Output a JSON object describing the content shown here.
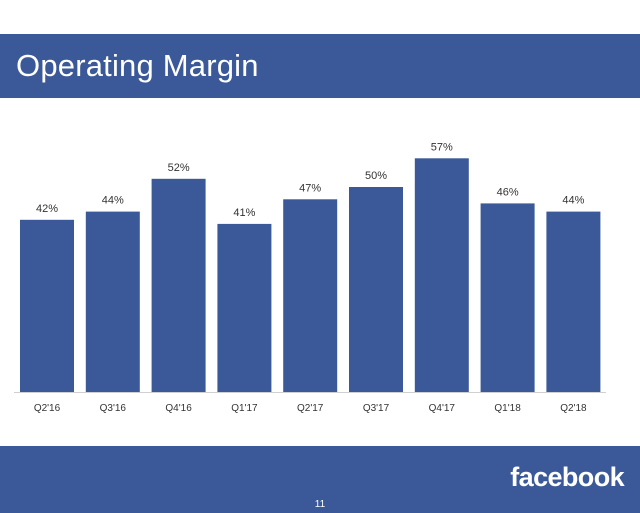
{
  "slide": {
    "title": "Operating Margin",
    "logo_text": "facebook",
    "page_number": "11"
  },
  "colors": {
    "brand_blue": "#3b5998",
    "bar": "#3b5998",
    "text": "#333333"
  },
  "chart_data": {
    "type": "bar",
    "title": "",
    "xlabel": "",
    "ylabel": "",
    "categories": [
      "Q2'16",
      "Q3'16",
      "Q4'16",
      "Q1'17",
      "Q2'17",
      "Q3'17",
      "Q4'17",
      "Q1'18",
      "Q2'18"
    ],
    "values": [
      42,
      44,
      52,
      41,
      47,
      50,
      57,
      46,
      44
    ],
    "data_labels": [
      "42%",
      "44%",
      "52%",
      "41%",
      "47%",
      "50%",
      "57%",
      "46%",
      "44%"
    ],
    "ylim": [
      0,
      100
    ],
    "grid": false,
    "legend": "none"
  }
}
